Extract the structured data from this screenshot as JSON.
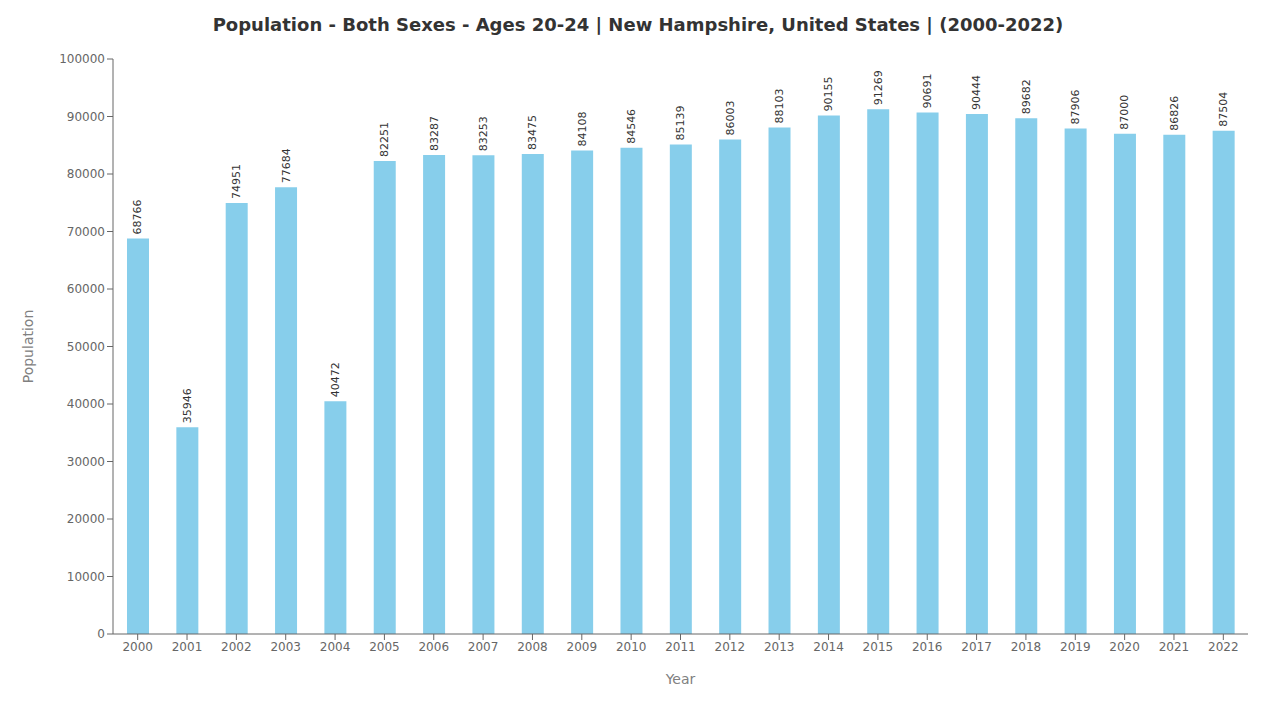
{
  "chart_data": {
    "type": "bar",
    "title": "Population - Both Sexes - Ages 20-24 | New Hampshire, United States |  (2000-2022)",
    "x_label": "Year",
    "y_label": "Population",
    "categories": [
      2000,
      2001,
      2002,
      2003,
      2004,
      2005,
      2006,
      2007,
      2008,
      2009,
      2010,
      2011,
      2012,
      2013,
      2014,
      2015,
      2016,
      2017,
      2018,
      2019,
      2020,
      2021,
      2022
    ],
    "values": [
      68766,
      35946,
      74951,
      77684,
      40472,
      82251,
      83287,
      83253,
      83475,
      84108,
      84546,
      85139,
      86003,
      88103,
      90155,
      91269,
      90691,
      90444,
      89682,
      87906,
      87000,
      86826,
      87504
    ],
    "color": "#87CEEB",
    "ylim": [
      0,
      100000
    ],
    "yticks": [
      0,
      10000,
      20000,
      30000,
      40000,
      50000,
      60000,
      70000,
      80000,
      90000,
      100000
    ],
    "grid": false,
    "data_labels": true
  }
}
